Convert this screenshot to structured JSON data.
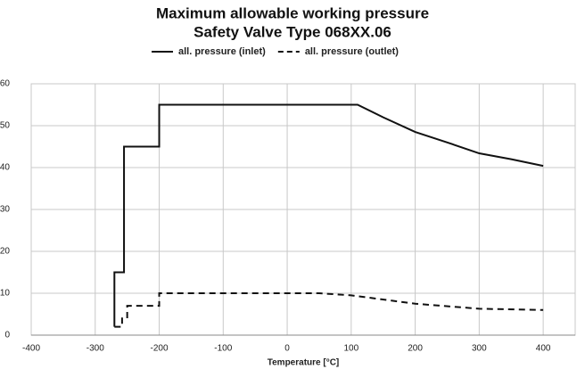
{
  "chart_data": {
    "type": "line",
    "title": "Maximum allowable working pressure",
    "subtitle": "Safety Valve Type 068XX.06",
    "x_label": "Temperature [°C]",
    "xlim": [
      -400,
      450
    ],
    "xticks": [
      -400,
      -300,
      -200,
      -100,
      0,
      100,
      200,
      300,
      400
    ],
    "ylim": [
      0,
      60
    ],
    "yticks": [
      0,
      10,
      20,
      30,
      40,
      50,
      60
    ],
    "grid": true,
    "legend": "top",
    "series": [
      {
        "name": "all. pressure (inlet)",
        "color": "#111111",
        "dash": "solid",
        "x": [
          -270,
          -270,
          -255,
          -255,
          -200,
          -200,
          110,
          150,
          200,
          250,
          300,
          350,
          400
        ],
        "values": [
          2,
          15,
          15,
          45,
          45,
          55,
          55,
          52,
          48.5,
          46,
          43.4,
          42,
          40.4
        ]
      },
      {
        "name": "all. pressure (outlet)",
        "color": "#111111",
        "dash": "dashed",
        "x": [
          -270,
          -258,
          -258,
          -250,
          -250,
          -200,
          -200,
          50,
          100,
          200,
          300,
          400
        ],
        "values": [
          2,
          2,
          4,
          4,
          7,
          7,
          10,
          10,
          9.5,
          7.5,
          6.3,
          6
        ]
      }
    ]
  }
}
